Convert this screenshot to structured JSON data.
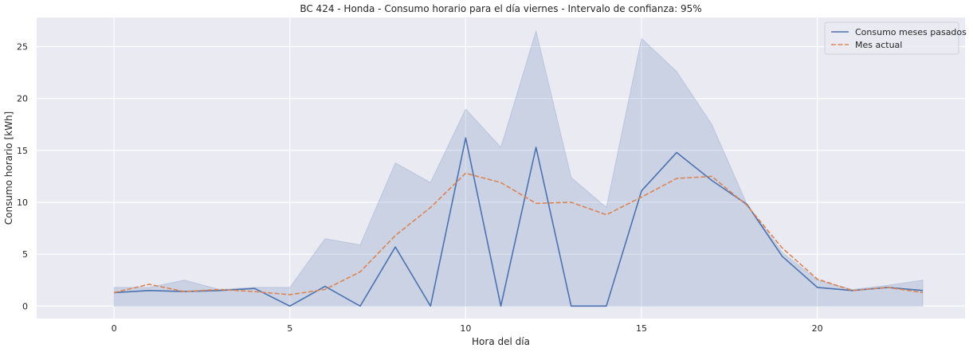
{
  "chart_data": {
    "type": "line",
    "title": "BC 424 - Honda - Consumo horario para el día viernes - Intervalo de confianza: 95%",
    "xlabel": "Hora del día",
    "ylabel": "Consumo horario [kWh]",
    "xlim": [
      -2.2,
      24.2
    ],
    "ylim": [
      -1.2,
      27.8
    ],
    "xticks": [
      0,
      5,
      10,
      15,
      20
    ],
    "yticks": [
      0,
      5,
      10,
      15,
      20,
      25
    ],
    "grid": true,
    "legend_position": "top-right",
    "x": [
      0,
      1,
      2,
      3,
      4,
      5,
      6,
      7,
      8,
      9,
      10,
      11,
      12,
      13,
      14,
      15,
      16,
      17,
      18,
      19,
      20,
      21,
      22,
      23
    ],
    "series": [
      {
        "name": "Consumo meses pasados",
        "color": "#4c72b0",
        "style": "solid",
        "values": [
          1.3,
          1.5,
          1.4,
          1.5,
          1.7,
          0.0,
          1.9,
          0.0,
          5.7,
          0.0,
          16.2,
          0.0,
          15.3,
          0.0,
          0.0,
          11.1,
          14.8,
          12.1,
          9.8,
          4.8,
          1.8,
          1.5,
          1.8,
          1.5
        ]
      },
      {
        "name": "Mes actual",
        "color": "#dd8452",
        "style": "dashed",
        "values": [
          1.3,
          2.1,
          1.4,
          1.6,
          1.4,
          1.1,
          1.6,
          3.3,
          6.8,
          9.5,
          12.8,
          11.9,
          9.9,
          10.0,
          8.8,
          10.5,
          12.3,
          12.5,
          9.7,
          5.6,
          2.6,
          1.5,
          1.8,
          1.3
        ]
      }
    ],
    "confidence_band": {
      "of": "Consumo meses pasados",
      "color": "#4c72b0",
      "lower": [
        0,
        0,
        0,
        0,
        0,
        0,
        0,
        0,
        0,
        0,
        0,
        0,
        0,
        0,
        0,
        0,
        0,
        0,
        0,
        0,
        0,
        0,
        0,
        0
      ],
      "upper": [
        1.8,
        1.8,
        2.5,
        1.6,
        1.8,
        1.8,
        6.5,
        5.9,
        13.8,
        11.9,
        19.0,
        15.3,
        26.5,
        12.4,
        9.5,
        25.8,
        22.6,
        17.5,
        9.8,
        5.2,
        2.5,
        1.6,
        2.0,
        2.5
      ]
    }
  }
}
